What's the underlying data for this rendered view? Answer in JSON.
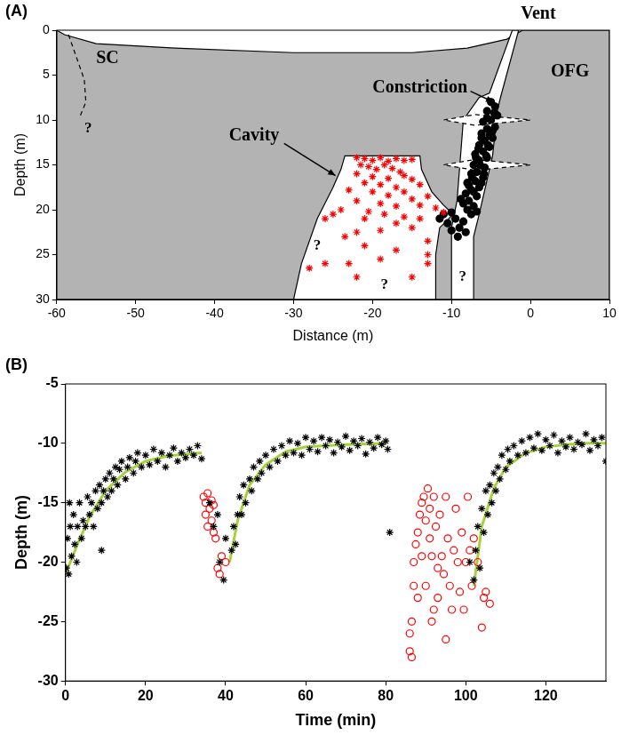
{
  "chart_data": [
    {
      "type": "scatter",
      "title": "(A)",
      "x_label": "Distance (m)",
      "y_label": "Depth (m)",
      "xlim": [
        -60,
        10
      ],
      "xticks": [
        -60,
        -50,
        -40,
        -30,
        -20,
        -10,
        0,
        10
      ],
      "ylim": [
        30,
        0
      ],
      "yticks": [
        0,
        5,
        10,
        15,
        20,
        25,
        30
      ],
      "grid": false,
      "regions": [
        {
          "color": "#b3b3b3",
          "line_style": "solid",
          "x": [
            -60,
            -59,
            -55,
            -45,
            -30,
            -15,
            -8,
            -3,
            -1,
            10,
            10,
            -60
          ],
          "y": [
            0,
            0.5,
            1.5,
            2,
            2.5,
            2.5,
            2,
            1,
            0,
            0,
            30,
            30
          ]
        },
        {
          "color": "#ffffff",
          "line_style": "solid",
          "x": [
            -30,
            -29,
            -27,
            -25,
            -24,
            -23.5,
            -14,
            -13.8,
            -12.5,
            -11,
            -9.8,
            -11.5,
            -12,
            -12
          ],
          "y": [
            30,
            26,
            21,
            17.5,
            15.5,
            14,
            14,
            15.5,
            18,
            19.5,
            20.5,
            22,
            25,
            30
          ]
        },
        {
          "color": "#ffffff",
          "line_style": "solid",
          "x": [
            -10,
            -10,
            -9.3,
            -8.5,
            -6.5,
            -5.2,
            -2.3,
            -1.5,
            -3.8,
            -4.2,
            -4.8,
            -6.5,
            -7.2,
            -7.2
          ],
          "y": [
            30,
            22,
            19,
            10,
            7.5,
            7,
            0,
            0,
            7.5,
            9,
            14,
            20.5,
            23,
            30
          ]
        },
        {
          "color": "#ffffff",
          "line_style": "dashed",
          "x": [
            -11,
            -7,
            0,
            -7
          ],
          "y": [
            10,
            9.4,
            10,
            10.6
          ]
        },
        {
          "color": "#ffffff",
          "line_style": "dashed",
          "x": [
            -11,
            -7,
            0,
            -7
          ],
          "y": [
            15,
            14.4,
            15,
            15.6
          ]
        },
        {
          "line_style": "dashed",
          "x": [
            -58.5,
            -57.5,
            -56.5,
            -56.3,
            -57
          ],
          "y": [
            0.5,
            3,
            5.5,
            8,
            9.5
          ]
        }
      ],
      "annotations": [
        "Vent",
        "SC",
        "OFG",
        "Constriction",
        "Cavity",
        "?",
        "?",
        "?",
        "?"
      ],
      "series": [
        {
          "color": "#ff0000",
          "marker": "star",
          "x": [
            -22,
            -21,
            -20,
            -19,
            -18,
            -17,
            -16,
            -15,
            -21.5,
            -20.5,
            -19.5,
            -18.5,
            -17.5,
            -16.5,
            -22,
            -20,
            -18,
            -16,
            -15,
            -21,
            -19,
            -17,
            -14,
            -23,
            -20,
            -18,
            -16,
            -15,
            -13,
            -22,
            -19,
            -17,
            -14,
            -12,
            -24,
            -20.5,
            -18.5,
            -16,
            -11,
            -21,
            -17,
            -14,
            -26,
            -22,
            -19,
            -15,
            -23.5,
            -21,
            -13,
            -17,
            -26,
            -23,
            -19,
            -13,
            -28,
            -22,
            -15,
            -13,
            -25
          ],
          "values": [
            14.2,
            14.3,
            14.5,
            14.2,
            14.6,
            14.3,
            14.5,
            14.4,
            15,
            15.2,
            15.5,
            15,
            15.4,
            15.8,
            16,
            16.3,
            16.5,
            16.2,
            16.6,
            17,
            17.2,
            17.5,
            17.2,
            17.8,
            18,
            18.4,
            18,
            18.8,
            18.5,
            19,
            19.3,
            19.6,
            19.5,
            19.8,
            20,
            20.2,
            20.5,
            20.8,
            20.3,
            21,
            21.5,
            21,
            21,
            22.5,
            22.3,
            22,
            23,
            24,
            23.5,
            24.5,
            26,
            26,
            25.5,
            25,
            26.5,
            27.5,
            27.5,
            26,
            20.5
          ]
        },
        {
          "color": "#000000",
          "marker": "circle",
          "x": [
            -5,
            -4.5,
            -5.5,
            -4.2,
            -5,
            -6,
            -4.5,
            -5.5,
            -6.2,
            -4.8,
            -5.8,
            -6.5,
            -5.2,
            -6,
            -7,
            -5.5,
            -6.5,
            -7.2,
            -5.8,
            -6.8,
            -7.5,
            -6,
            -7,
            -8,
            -6.5,
            -7.5,
            -8.2,
            -6.8,
            -7.8,
            -8.5,
            -7.2,
            -8,
            -5.5,
            -4.8,
            -6.2,
            -5.4,
            -6.6,
            -5.6,
            -6.4,
            -7.4,
            -6.2,
            -7.2,
            -8.8,
            -7.5,
            -6.8,
            -4.6,
            -5.2,
            -6.9,
            -7.8,
            -5.9,
            -11,
            -10,
            -9.5,
            -10.5,
            -9,
            -8.5,
            -10,
            -9.2,
            -11.5,
            -8.2
          ],
          "values": [
            8,
            8.5,
            9,
            9.5,
            10,
            10.2,
            10.8,
            11,
            11.5,
            12,
            12.3,
            12.8,
            13,
            13.5,
            13.8,
            14.2,
            14.5,
            15,
            15.3,
            15.8,
            16,
            16.4,
            16.8,
            17,
            17.5,
            17.8,
            18.2,
            18.5,
            19,
            19.3,
            19.6,
            20,
            9.8,
            11.2,
            12,
            12.8,
            13.2,
            14,
            15,
            16.4,
            17,
            18,
            18.8,
            20.5,
            20.2,
            9.2,
            11.7,
            14.2,
            17.3,
            16,
            20.5,
            20.3,
            21,
            21.5,
            22,
            21.3,
            22.3,
            23,
            21,
            22.5
          ]
        }
      ]
    },
    {
      "type": "scatter",
      "title": "(B)",
      "x_label": "Time (min)",
      "y_label": "Depth (m)",
      "xlim": [
        0,
        135
      ],
      "xticks": [
        0,
        20,
        40,
        60,
        80,
        100,
        120
      ],
      "ylim": [
        -30,
        -5
      ],
      "yticks": [
        -30,
        -25,
        -20,
        -15,
        -10,
        -5
      ],
      "grid": false,
      "series": [
        {
          "color": "#000000",
          "marker": "star",
          "x": [
            0.2,
            0.5,
            0.8,
            1.2,
            1.5,
            2,
            2.3,
            2.8,
            3,
            3.5,
            4,
            4.4,
            5,
            5.5,
            6,
            6.5,
            7,
            7.5,
            8,
            8.5,
            9,
            9.5,
            10,
            10.5,
            11,
            11.5,
            12,
            12.5,
            13,
            13.5,
            14,
            15,
            15.5,
            16,
            17,
            17.5,
            18,
            19,
            20,
            21,
            22,
            23,
            24,
            25,
            26,
            27,
            28,
            29,
            30,
            31,
            32,
            33,
            34,
            1,
            9,
            36,
            37,
            38,
            38.5,
            39.5,
            40,
            41.5,
            42,
            42.5,
            43,
            43.5,
            44,
            44.5,
            45,
            46,
            46.5,
            47,
            48,
            48.5,
            49,
            50,
            51,
            52,
            53,
            54,
            55,
            56,
            57,
            58,
            59,
            60,
            61,
            62,
            63,
            64,
            65,
            66,
            67,
            68,
            69,
            70,
            71,
            72,
            73,
            74,
            75,
            76,
            77,
            78,
            79,
            80,
            80.5,
            81,
            101,
            102,
            102.5,
            103,
            103.5,
            104,
            104.5,
            105,
            105.5,
            106,
            106.5,
            107,
            107.5,
            108,
            108.5,
            109,
            110,
            110.5,
            111,
            112,
            113,
            114,
            115,
            116,
            117,
            118,
            119,
            120,
            121,
            122,
            123,
            124,
            125,
            126,
            127,
            128,
            129,
            130,
            131,
            132,
            133,
            134,
            135
          ],
          "values": [
            -20.5,
            -18,
            -21,
            -17,
            -19.5,
            -16,
            -18.5,
            -20,
            -17,
            -15,
            -18,
            -16.5,
            -17,
            -14.5,
            -16,
            -15,
            -17,
            -14,
            -15.5,
            -13.5,
            -15,
            -14,
            -13,
            -14.5,
            -12.5,
            -14,
            -13,
            -12,
            -13.5,
            -12.2,
            -11.5,
            -13,
            -12,
            -11.2,
            -12.5,
            -11.5,
            -10.8,
            -12,
            -11,
            -11.8,
            -10.5,
            -11.5,
            -10.8,
            -12,
            -11,
            -10.4,
            -11.5,
            -10.8,
            -11.2,
            -10.5,
            -11,
            -10.2,
            -11.3,
            -15,
            -19,
            -15,
            -17,
            -16,
            -20,
            -21.5,
            -18,
            -19,
            -17,
            -18.5,
            -16,
            -14.5,
            -16,
            -13.5,
            -15,
            -13,
            -14,
            -12,
            -13,
            -11.5,
            -12.5,
            -11,
            -12,
            -10.5,
            -11.5,
            -10.2,
            -11,
            -9.8,
            -10.8,
            -10,
            -11,
            -9.5,
            -10.5,
            -9.8,
            -10.7,
            -9.5,
            -10.2,
            -9.7,
            -10.8,
            -9.9,
            -10.3,
            -9.4,
            -10.6,
            -9.8,
            -10.2,
            -9.6,
            -10.9,
            -9.9,
            -10.4,
            -9.5,
            -10.1,
            -9.8,
            -10.5,
            -17.5,
            -20,
            -21.5,
            -19,
            -17,
            -20.5,
            -15.5,
            -17.5,
            -14,
            -16,
            -13.5,
            -15,
            -12.5,
            -14,
            -12,
            -13,
            -11,
            -12.2,
            -10.5,
            -11.5,
            -10.2,
            -11,
            -9.8,
            -10.8,
            -9.5,
            -10.4,
            -9.2,
            -10.6,
            -9.7,
            -10.2,
            -9.3,
            -10.8,
            -9.8,
            -10.3,
            -9.5,
            -10.5,
            -9.9,
            -10.1,
            -9.2,
            -10.6,
            -9.7,
            -10.2,
            -9.5,
            -11.5
          ]
        },
        {
          "color": "#ff0000",
          "marker": "open_circle",
          "x": [
            34.5,
            35,
            35,
            35.5,
            35.5,
            36,
            36.5,
            36.5,
            37,
            37,
            37.5,
            38,
            38.5,
            39,
            40,
            86,
            86,
            86.5,
            86.5,
            87,
            87,
            87.5,
            88,
            88,
            88.5,
            89,
            89,
            89.5,
            90,
            90,
            90.5,
            91,
            91,
            91.5,
            91.5,
            92,
            92,
            92.5,
            93,
            93,
            93.5,
            94,
            94.5,
            95,
            95,
            95.5,
            96,
            96.5,
            97,
            97.5,
            98,
            98.5,
            99,
            99.5,
            100,
            100.5,
            101,
            101.5,
            102,
            103,
            104,
            104.5,
            105,
            106
          ],
          "values": [
            -14.5,
            -15,
            -16,
            -14.2,
            -17,
            -15.5,
            -14.8,
            -16.5,
            -15.2,
            -17.5,
            -18,
            -20.5,
            -21,
            -19.5,
            -20,
            -26,
            -27.5,
            -28,
            -25,
            -22,
            -20,
            -18.5,
            -17.5,
            -23,
            -16,
            -15,
            -19.5,
            -14.5,
            -16.5,
            -22,
            -13.8,
            -15.5,
            -18,
            -19.5,
            -25,
            -24,
            -14.5,
            -17,
            -20.5,
            -23,
            -16,
            -19.5,
            -21,
            -26.5,
            -14.5,
            -18,
            -22,
            -24,
            -19,
            -15.5,
            -20,
            -22.5,
            -17.5,
            -24,
            -20,
            -14.5,
            -19,
            -22,
            -18,
            -20,
            -25.5,
            -23,
            -22.5,
            -23.5
          ]
        },
        {
          "type": "line",
          "color": "#a6d13b",
          "marker": "none",
          "line_style": "solid",
          "x": [
            0,
            3,
            6,
            10,
            15,
            20,
            25,
            30,
            34,
            37,
            41,
            43,
            46,
            50,
            55,
            60,
            70,
            80,
            90,
            102,
            104,
            107,
            110,
            115,
            120,
            125,
            130,
            135
          ],
          "values": [
            -21,
            -18.5,
            -16.2,
            -14,
            -12.4,
            -11.5,
            -11.1,
            -10.9,
            -10.8,
            null,
            -20,
            -16.5,
            -13.5,
            -11.8,
            -10.7,
            -10.3,
            -10.1,
            -10,
            null,
            -22,
            -17,
            -13.8,
            -12,
            -10.8,
            -10.3,
            -10.1,
            -10,
            -10
          ]
        }
      ]
    }
  ]
}
